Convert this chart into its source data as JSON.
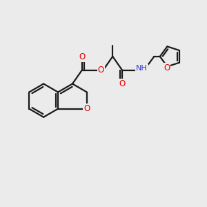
{
  "bg_color": "#ebebeb",
  "bond_color": "#1a1a1a",
  "o_color": "#e60000",
  "n_color": "#3333cc",
  "lw": 1.6,
  "figsize": [
    3.0,
    3.0
  ],
  "dpi": 100,
  "xlim": [
    0,
    10
  ],
  "ylim": [
    0,
    10
  ]
}
